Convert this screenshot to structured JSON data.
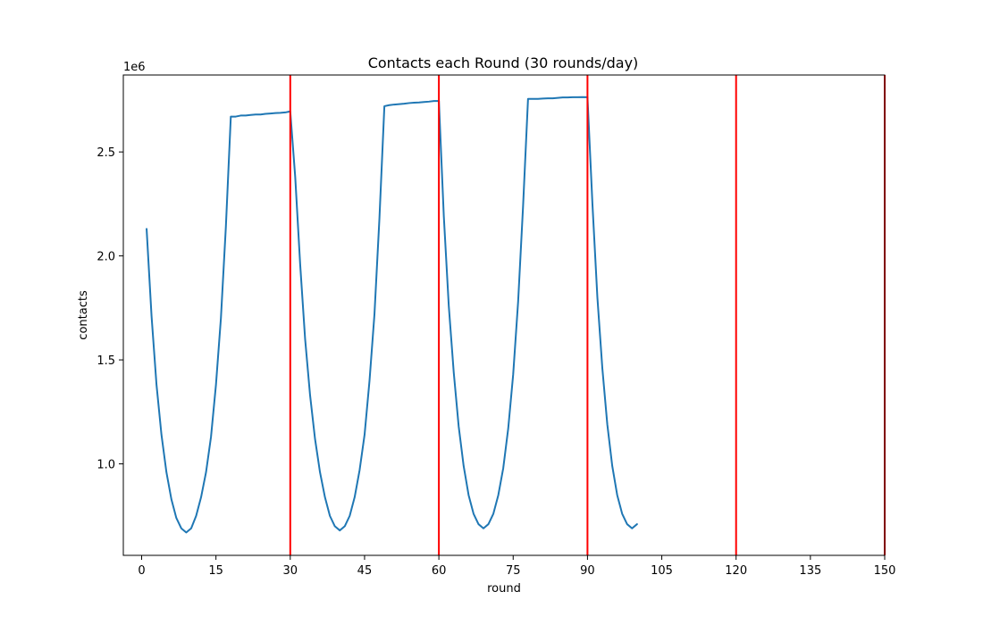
{
  "chart_data": {
    "type": "line",
    "title": "Contacts each Round (30 rounds/day)",
    "xlabel": "round",
    "ylabel": "contacts",
    "y_scale_label": "1e6",
    "xlim": [
      -3.7,
      150
    ],
    "ylim": [
      0.56,
      2.87
    ],
    "x_ticks": [
      0,
      15,
      30,
      45,
      60,
      75,
      90,
      105,
      120,
      135,
      150
    ],
    "x_tick_labels": [
      "0",
      "15",
      "30",
      "45",
      "60",
      "75",
      "90",
      "105",
      "120",
      "135",
      "150"
    ],
    "y_ticks": [
      1.0,
      1.5,
      2.0,
      2.5
    ],
    "y_tick_labels": [
      "1.0",
      "1.5",
      "2.0",
      "2.5"
    ],
    "grid": false,
    "series": [
      {
        "color": "#1f77b4",
        "x": [
          1,
          2,
          3,
          4,
          5,
          6,
          7,
          8,
          9,
          10,
          11,
          12,
          13,
          14,
          15,
          16,
          17,
          18,
          19,
          20,
          21,
          22,
          23,
          24,
          25,
          26,
          27,
          28,
          29,
          30,
          31,
          32,
          33,
          34,
          35,
          36,
          37,
          38,
          39,
          40,
          41,
          42,
          43,
          44,
          45,
          46,
          47,
          48,
          49,
          50,
          51,
          52,
          53,
          54,
          55,
          56,
          57,
          58,
          59,
          60,
          61,
          62,
          63,
          64,
          65,
          66,
          67,
          68,
          69,
          70,
          71,
          72,
          73,
          74,
          75,
          76,
          77,
          78,
          79,
          80,
          81,
          82,
          83,
          84,
          85,
          86,
          87,
          88,
          89,
          90,
          91,
          92,
          93,
          94,
          95,
          96,
          97,
          98,
          99,
          100
        ],
        "values": [
          2.13,
          1.71,
          1.38,
          1.14,
          0.96,
          0.83,
          0.74,
          0.69,
          0.67,
          0.69,
          0.75,
          0.84,
          0.96,
          1.13,
          1.38,
          1.7,
          2.14,
          2.67,
          2.67,
          2.675,
          2.675,
          2.678,
          2.68,
          2.68,
          2.683,
          2.685,
          2.687,
          2.688,
          2.69,
          2.695,
          2.38,
          1.96,
          1.6,
          1.33,
          1.12,
          0.96,
          0.84,
          0.75,
          0.7,
          0.68,
          0.7,
          0.75,
          0.84,
          0.97,
          1.14,
          1.4,
          1.72,
          2.18,
          2.72,
          2.725,
          2.728,
          2.73,
          2.732,
          2.735,
          2.737,
          2.738,
          2.74,
          2.742,
          2.745,
          2.745,
          2.19,
          1.76,
          1.44,
          1.18,
          0.99,
          0.85,
          0.76,
          0.71,
          0.69,
          0.71,
          0.76,
          0.85,
          0.98,
          1.17,
          1.43,
          1.78,
          2.24,
          2.755,
          2.755,
          2.755,
          2.757,
          2.758,
          2.758,
          2.76,
          2.762,
          2.762,
          2.763,
          2.763,
          2.764,
          2.763,
          2.25,
          1.8,
          1.46,
          1.19,
          0.99,
          0.85,
          0.76,
          0.71,
          0.69,
          0.71
        ]
      }
    ],
    "vertical_lines": {
      "color": "#ff0000",
      "x": [
        30,
        60,
        90,
        120,
        150
      ]
    }
  }
}
